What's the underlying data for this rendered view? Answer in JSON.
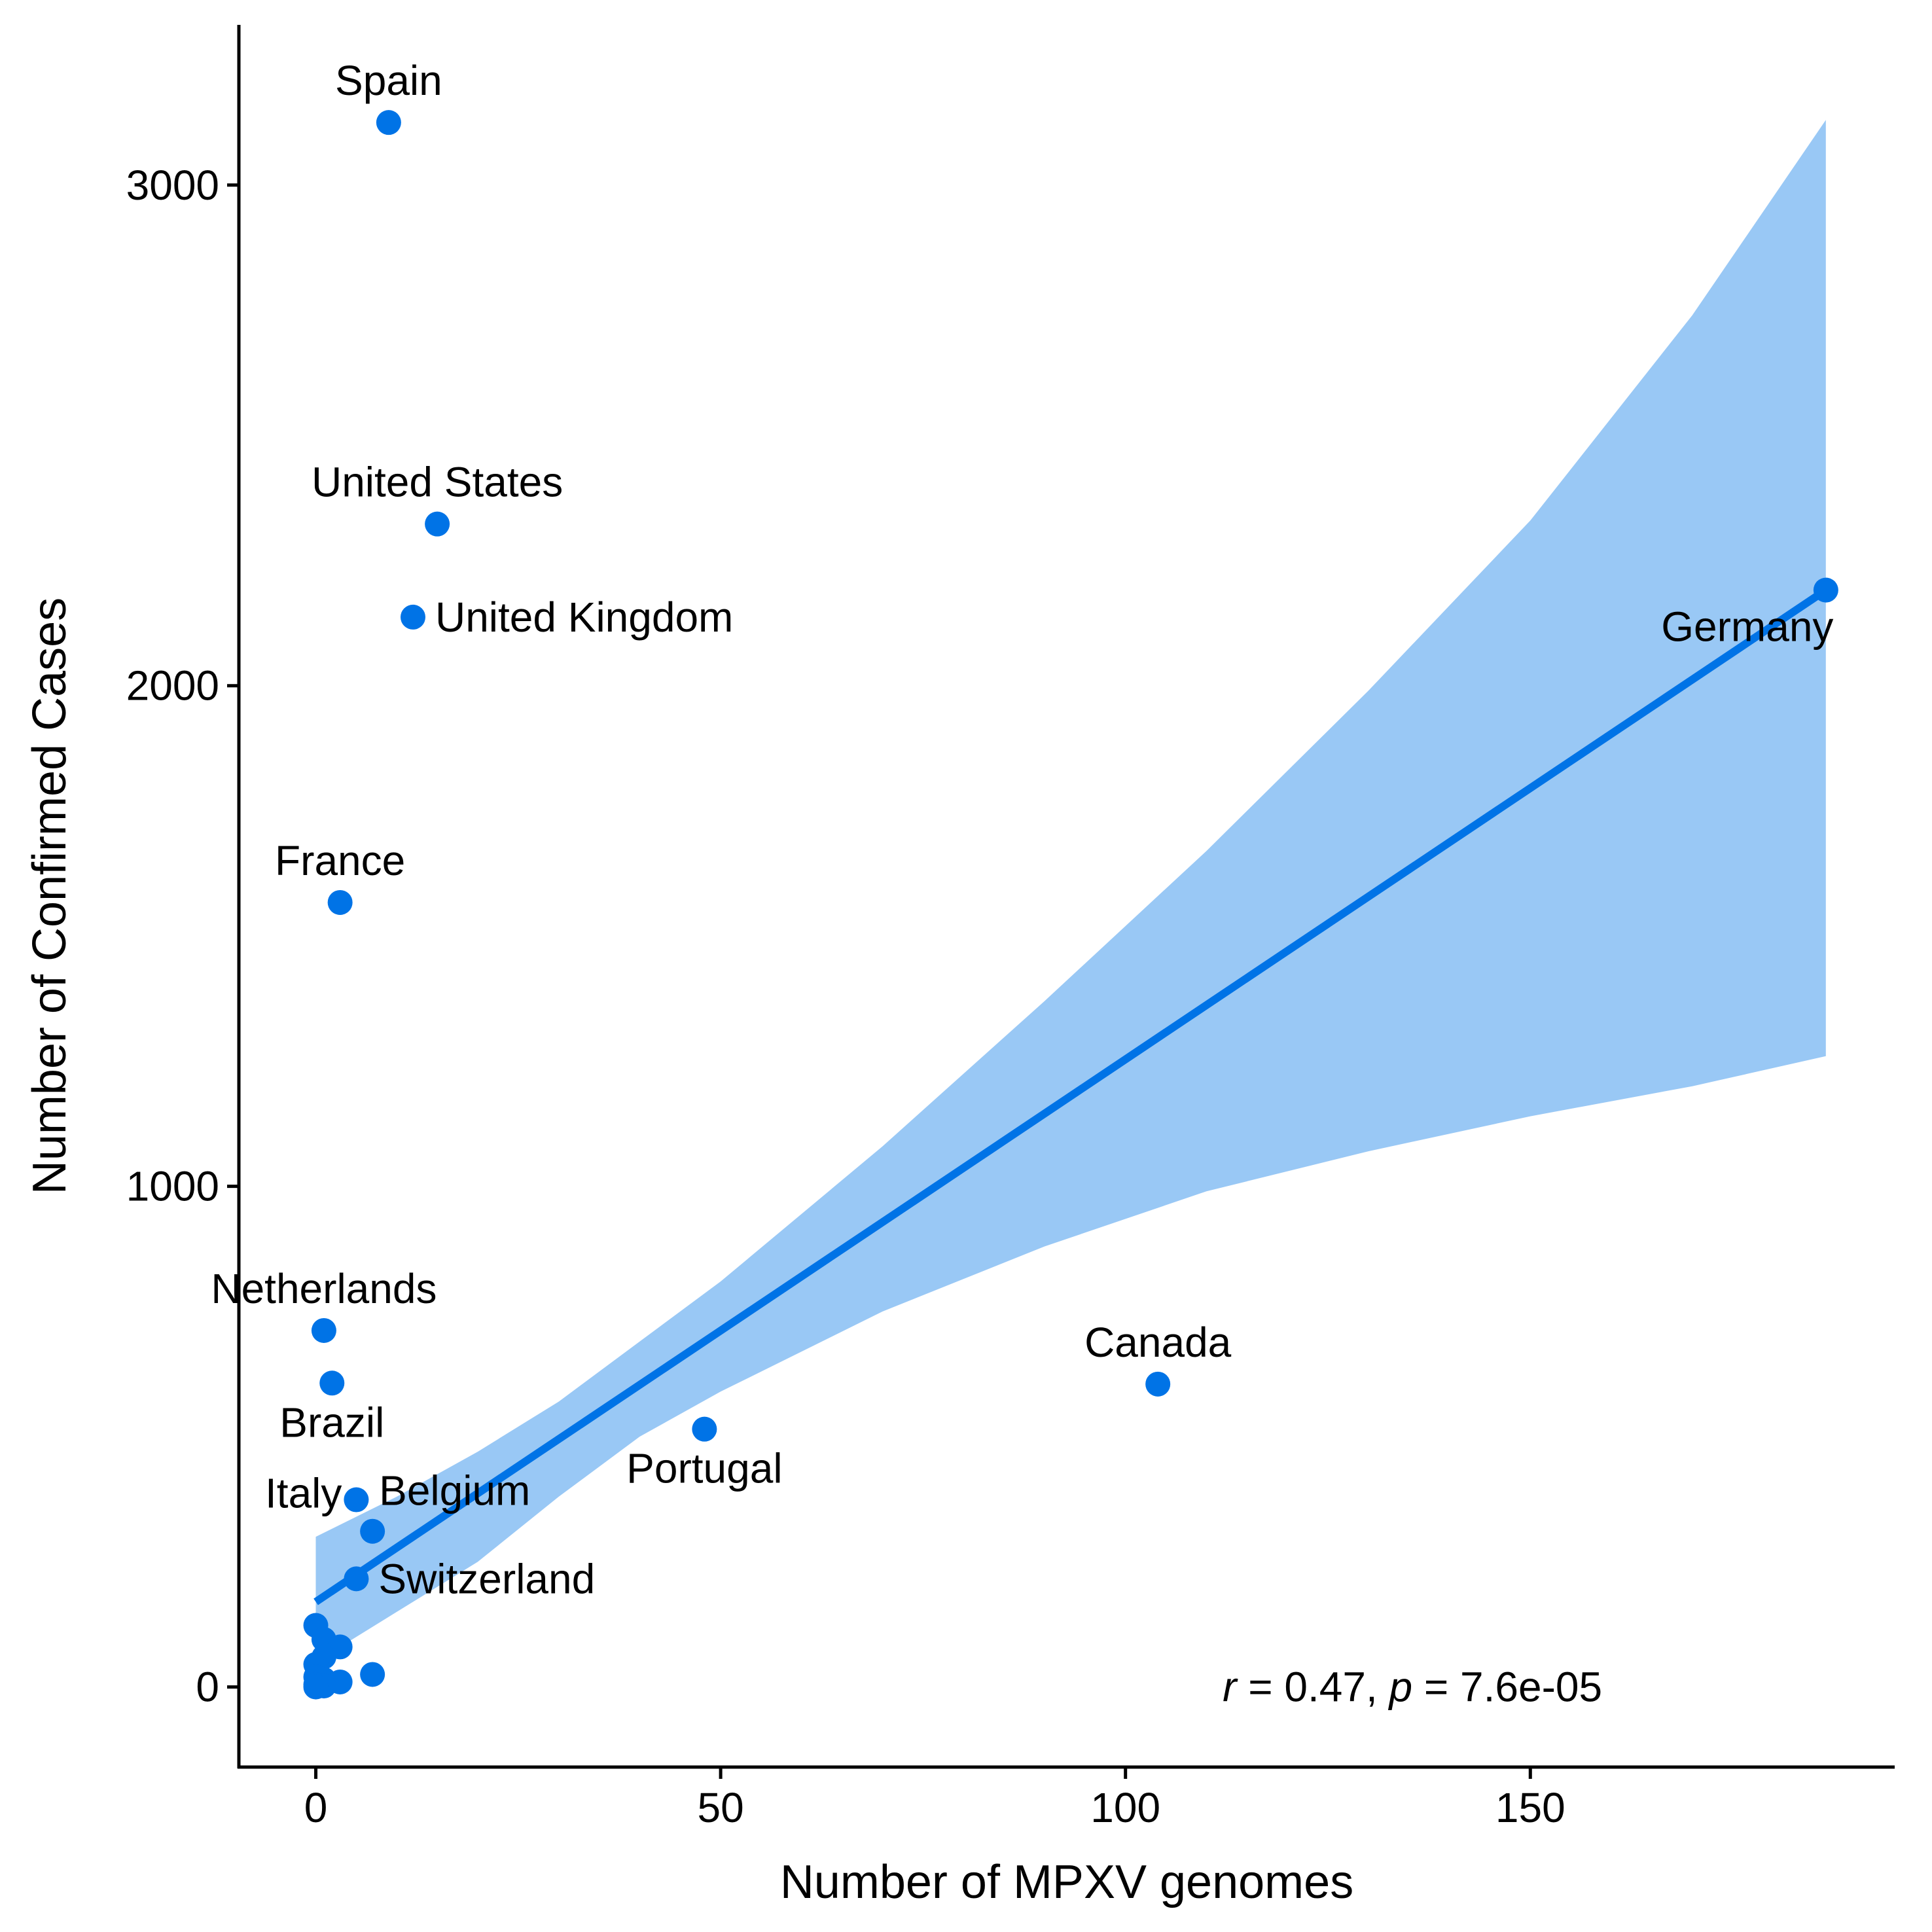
{
  "colors": {
    "points": "#0073e6",
    "fit_line": "#0073e6",
    "ribbon": "#99c8f5",
    "axis": "#000000",
    "background": "#ffffff"
  },
  "chart_data": {
    "type": "scatter",
    "title": "",
    "xlabel": "Number of MPXV genomes",
    "ylabel": "Number of Confirmed Cases",
    "xlim": [
      -9.5,
      195
    ],
    "ylim": [
      -160,
      3320
    ],
    "x_ticks": [
      0,
      50,
      100,
      150
    ],
    "y_ticks": [
      0,
      1000,
      2000,
      3000
    ],
    "grid": false,
    "legend": "none",
    "points": [
      {
        "label": "Spain",
        "x": 9,
        "y": 3125,
        "label_pos": "above"
      },
      {
        "label": "United States",
        "x": 15,
        "y": 2323,
        "label_pos": "above"
      },
      {
        "label": "United Kingdom",
        "x": 12,
        "y": 2137,
        "label_pos": "right"
      },
      {
        "label": "Germany",
        "x": 186.5,
        "y": 2191,
        "label_pos": "below-left"
      },
      {
        "label": "France",
        "x": 3,
        "y": 1567,
        "label_pos": "above"
      },
      {
        "label": "Netherlands",
        "x": 1,
        "y": 712,
        "label_pos": "above"
      },
      {
        "label": "Brazil",
        "x": 2,
        "y": 607,
        "label_pos": "below"
      },
      {
        "label": "Canada",
        "x": 104,
        "y": 605,
        "label_pos": "above"
      },
      {
        "label": "Portugal",
        "x": 48,
        "y": 515,
        "label_pos": "below"
      },
      {
        "label": "Italy",
        "x": 5,
        "y": 374,
        "label_pos": "left"
      },
      {
        "label": "Belgium",
        "x": 7,
        "y": 311,
        "label_pos": "above-right"
      },
      {
        "label": "Switzerland",
        "x": 5,
        "y": 216,
        "label_pos": "right"
      },
      {
        "label": "",
        "x": 0,
        "y": 123
      },
      {
        "label": "",
        "x": 1,
        "y": 95
      },
      {
        "label": "",
        "x": 3,
        "y": 80
      },
      {
        "label": "",
        "x": 1,
        "y": 60
      },
      {
        "label": "",
        "x": 0,
        "y": 45
      },
      {
        "label": "",
        "x": 7,
        "y": 25
      },
      {
        "label": "",
        "x": 0,
        "y": 20
      },
      {
        "label": "",
        "x": 1,
        "y": 15
      },
      {
        "label": "",
        "x": 3,
        "y": 10
      },
      {
        "label": "",
        "x": 0,
        "y": 5
      },
      {
        "label": "",
        "x": 1,
        "y": 2
      },
      {
        "label": "",
        "x": 0,
        "y": 0
      }
    ],
    "fit": {
      "type": "linear",
      "x_range": [
        0,
        186.5
      ],
      "line": [
        {
          "x": 0,
          "y": 170
        },
        {
          "x": 186.5,
          "y": 2191
        }
      ],
      "confidence_band": [
        {
          "x": 0,
          "lower": 50,
          "upper": 300
        },
        {
          "x": 10,
          "lower": 150,
          "upper": 380
        },
        {
          "x": 20,
          "lower": 250,
          "upper": 470
        },
        {
          "x": 30,
          "lower": 380,
          "upper": 570
        },
        {
          "x": 40,
          "lower": 500,
          "upper": 690
        },
        {
          "x": 50,
          "lower": 590,
          "upper": 810
        },
        {
          "x": 70,
          "lower": 750,
          "upper": 1080
        },
        {
          "x": 90,
          "lower": 880,
          "upper": 1370
        },
        {
          "x": 110,
          "lower": 990,
          "upper": 1670
        },
        {
          "x": 130,
          "lower": 1070,
          "upper": 1990
        },
        {
          "x": 150,
          "lower": 1140,
          "upper": 2330
        },
        {
          "x": 170,
          "lower": 1200,
          "upper": 2740
        },
        {
          "x": 186.5,
          "lower": 1260,
          "upper": 3130
        }
      ]
    },
    "annotation": {
      "r_symbol": "r",
      "r_text": " = 0.47, ",
      "p_symbol": "p",
      "p_text": " = 7.6e-05"
    }
  }
}
